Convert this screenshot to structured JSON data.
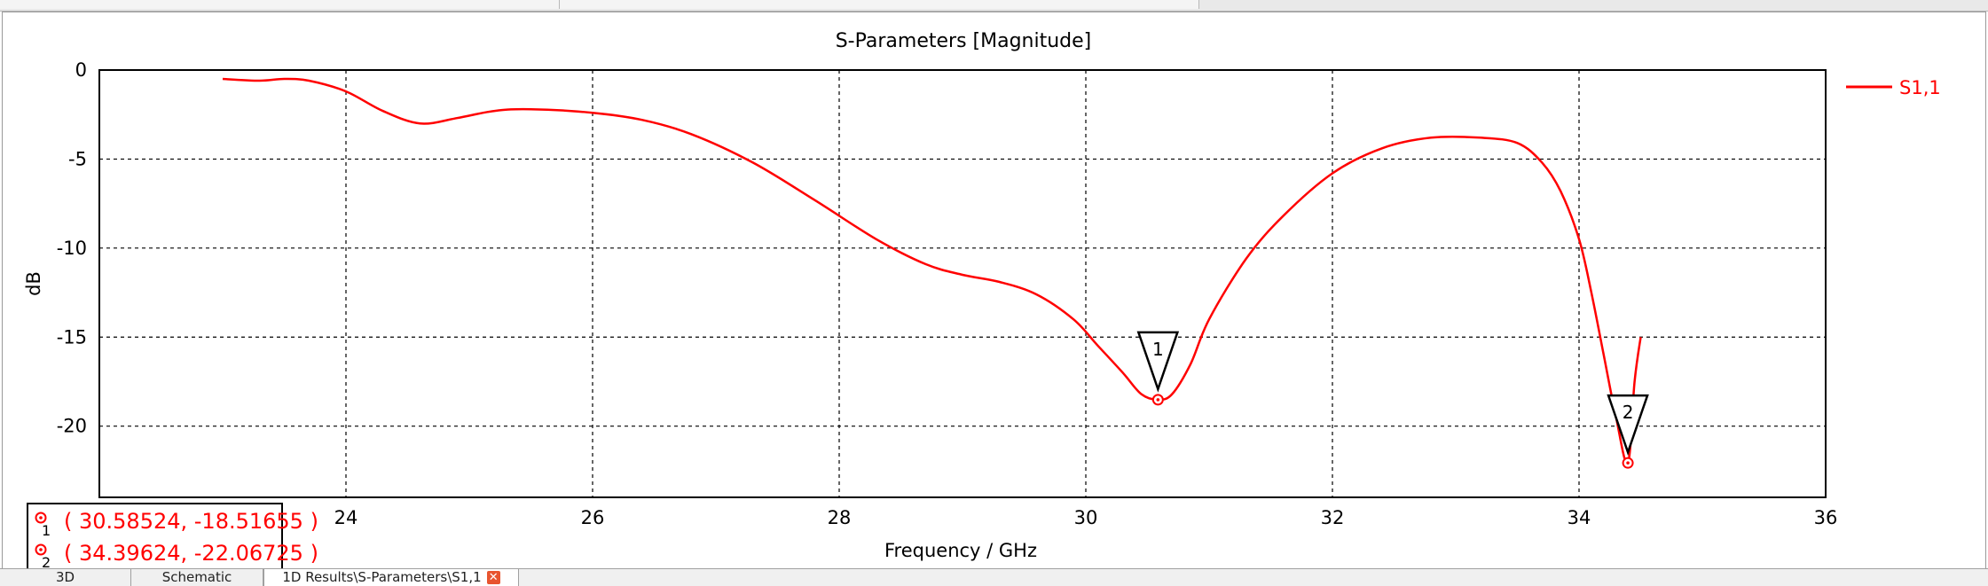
{
  "chart_data": {
    "type": "line",
    "title": "S-Parameters [Magnitude]",
    "xlabel": "Frequency / GHz",
    "ylabel": "dB",
    "xlim": [
      22,
      36
    ],
    "ylim": [
      -24,
      0
    ],
    "xticks": [
      24,
      26,
      28,
      30,
      32,
      34,
      36
    ],
    "yticks": [
      0,
      -5,
      -10,
      -15,
      -20
    ],
    "grid": true,
    "legend_position": "top-right",
    "series": [
      {
        "name": "S1,1",
        "color": "#ff0000",
        "x": [
          23.0,
          23.3,
          23.5,
          23.7,
          24.0,
          24.3,
          24.6,
          24.9,
          25.2,
          25.5,
          26.0,
          26.4,
          26.8,
          27.3,
          27.8,
          28.3,
          28.7,
          29.0,
          29.3,
          29.6,
          29.9,
          30.1,
          30.3,
          30.45,
          30.58524,
          30.7,
          30.85,
          31.0,
          31.3,
          31.6,
          32.0,
          32.4,
          32.8,
          33.2,
          33.5,
          33.7,
          33.85,
          34.0,
          34.1,
          34.2,
          34.3,
          34.39624,
          34.45,
          34.5
        ],
        "y": [
          -0.5,
          -0.6,
          -0.5,
          -0.6,
          -1.2,
          -2.3,
          -3.0,
          -2.7,
          -2.3,
          -2.2,
          -2.4,
          -2.8,
          -3.6,
          -5.2,
          -7.3,
          -9.5,
          -10.9,
          -11.5,
          -11.9,
          -12.6,
          -14.0,
          -15.5,
          -17.0,
          -18.2,
          -18.51655,
          -18.2,
          -16.5,
          -14.0,
          -10.6,
          -8.2,
          -5.8,
          -4.4,
          -3.8,
          -3.8,
          -4.1,
          -5.2,
          -6.8,
          -9.5,
          -12.5,
          -16.0,
          -19.5,
          -22.06725,
          -17.5,
          -15.0
        ]
      }
    ]
  },
  "markers": [
    {
      "id": "1",
      "x": 30.58524,
      "y": -18.51655,
      "label": "( 30.58524, -18.51655 )"
    },
    {
      "id": "2",
      "x": 34.39624,
      "y": -22.06725,
      "label": "( 34.39624, -22.06725 )"
    }
  ],
  "tabs": [
    {
      "label": "3D"
    },
    {
      "label": "Schematic"
    },
    {
      "label": "1D Results\\S-Parameters\\S1,1"
    }
  ],
  "colors": {
    "curve": "#ff0000",
    "grid": "#000000",
    "tab_close": "#e8552f"
  }
}
